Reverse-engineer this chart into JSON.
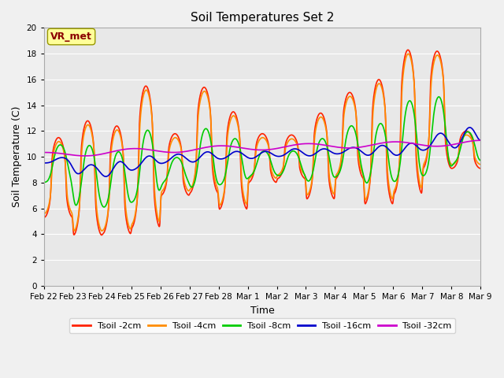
{
  "title": "Soil Temperatures Set 2",
  "xlabel": "Time",
  "ylabel": "Soil Temperature (C)",
  "ylim": [
    0,
    20
  ],
  "yticks": [
    0,
    2,
    4,
    6,
    8,
    10,
    12,
    14,
    16,
    18,
    20
  ],
  "x_labels": [
    "Feb 22",
    "Feb 23",
    "Feb 24",
    "Feb 25",
    "Feb 26",
    "Feb 27",
    "Feb 28",
    "Mar 1",
    "Mar 2",
    "Mar 3",
    "Mar 4",
    "Mar 5",
    "Mar 6",
    "Mar 7",
    "Mar 8",
    "Mar 9"
  ],
  "annotation_text": "VR_met",
  "annotation_color": "#8B0000",
  "annotation_bg": "#FFFF99",
  "bg_color": "#E8E8E8",
  "series_colors": [
    "#FF2200",
    "#FF8C00",
    "#00CC00",
    "#0000CC",
    "#CC00CC"
  ],
  "series_labels": [
    "Tsoil -2cm",
    "Tsoil -4cm",
    "Tsoil -8cm",
    "Tsoil -16cm",
    "Tsoil -32cm"
  ],
  "series_linewidths": [
    1.2,
    1.2,
    1.2,
    1.2,
    1.2
  ]
}
